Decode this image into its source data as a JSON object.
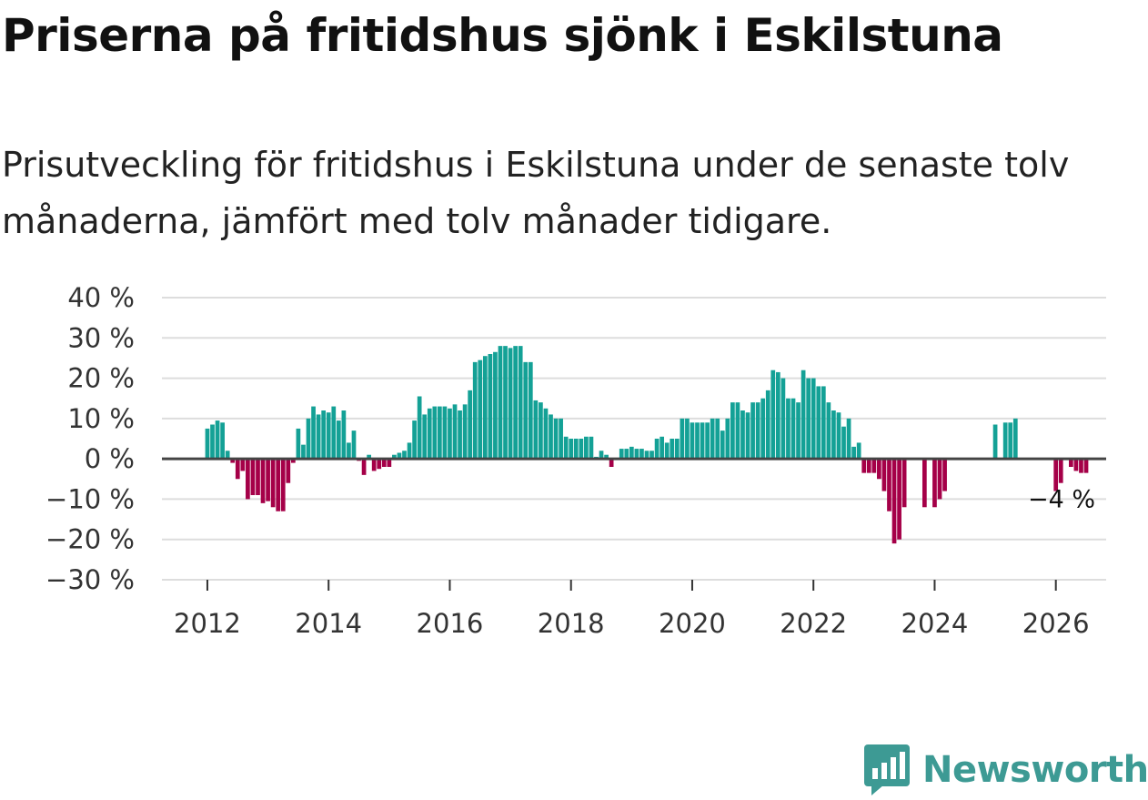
{
  "colors": {
    "positive": "#14a196",
    "negative": "#a50048",
    "grid": "#dddddd",
    "zero_line": "#444444",
    "brand": "#3d9a94"
  },
  "brand": {
    "name": "Newsworthy",
    "icon": "bar-chart-speech-bubble-icon"
  },
  "chart_data": {
    "type": "bar",
    "title": "Priserna på fritidshus sjönk i Eskilstuna",
    "subtitle": "Prisutveckling för fritidshus i Eskilstuna under de senaste tolv månaderna, jämfört med tolv månader tidigare.",
    "xlabel": "",
    "ylabel": "",
    "ylim": [
      -30,
      40
    ],
    "xlim": [
      2011.25,
      2026.83
    ],
    "y_ticks": [
      {
        "value": 40,
        "label": "40 %"
      },
      {
        "value": 30,
        "label": "30 %"
      },
      {
        "value": 20,
        "label": "20 %"
      },
      {
        "value": 10,
        "label": "10 %"
      },
      {
        "value": 0,
        "label": "0 %"
      },
      {
        "value": -10,
        "label": "−10 %"
      },
      {
        "value": -20,
        "label": "−20 %"
      },
      {
        "value": -30,
        "label": "−30 %"
      }
    ],
    "x_ticks": [
      {
        "value": 2012,
        "label": "2012"
      },
      {
        "value": 2014,
        "label": "2014"
      },
      {
        "value": 2016,
        "label": "2016"
      },
      {
        "value": 2018,
        "label": "2018"
      },
      {
        "value": 2020,
        "label": "2020"
      },
      {
        "value": 2022,
        "label": "2022"
      },
      {
        "value": 2024,
        "label": "2024"
      },
      {
        "value": 2026,
        "label": "2026"
      }
    ],
    "start": "2012-01",
    "interval": "month",
    "values": [
      7.5,
      8.5,
      9.5,
      9,
      2,
      -1,
      -5,
      -3,
      -10,
      -9,
      -9,
      -11,
      -10.5,
      -12,
      -13,
      -13,
      -6,
      -1,
      7.5,
      3.5,
      10,
      13,
      11,
      12,
      11.5,
      13,
      9.5,
      12,
      4,
      7,
      -0.5,
      -4,
      1,
      -3,
      -2.5,
      -2,
      -2,
      1,
      1.5,
      2,
      4,
      9.5,
      15.5,
      11,
      12.5,
      13,
      13,
      13,
      12.5,
      13.5,
      12,
      13.5,
      17,
      24,
      24.5,
      25.5,
      26,
      26.5,
      28,
      28,
      27.5,
      28,
      28,
      24,
      24,
      14.5,
      14,
      12.5,
      11,
      10,
      10,
      5.5,
      5,
      5,
      5,
      5.5,
      5.5,
      0.5,
      2,
      1,
      -2,
      0,
      2.5,
      2.5,
      3,
      2.5,
      2.5,
      2,
      2,
      5,
      5.5,
      4,
      5,
      5,
      10,
      10,
      9,
      9,
      9,
      9,
      10,
      10,
      7,
      10,
      14,
      14,
      12,
      11.5,
      14,
      14,
      15,
      17,
      22,
      21.5,
      20,
      15,
      15,
      14,
      22,
      20,
      20,
      18,
      18,
      14,
      12,
      11.5,
      8,
      10,
      3,
      4,
      -3.5,
      -3.5,
      -3.5,
      -5,
      -8,
      -13,
      -21,
      -20,
      -12,
      null,
      null,
      null,
      -12,
      null,
      -12,
      -10,
      -8,
      null,
      null,
      null,
      null,
      null,
      null,
      null,
      null,
      null,
      8.5,
      null,
      9,
      9,
      10,
      null,
      null,
      null,
      null,
      null,
      null,
      null,
      -8,
      -6,
      null,
      -2,
      -3,
      -3.5,
      -3.5
    ],
    "end_label": "−4 %"
  }
}
